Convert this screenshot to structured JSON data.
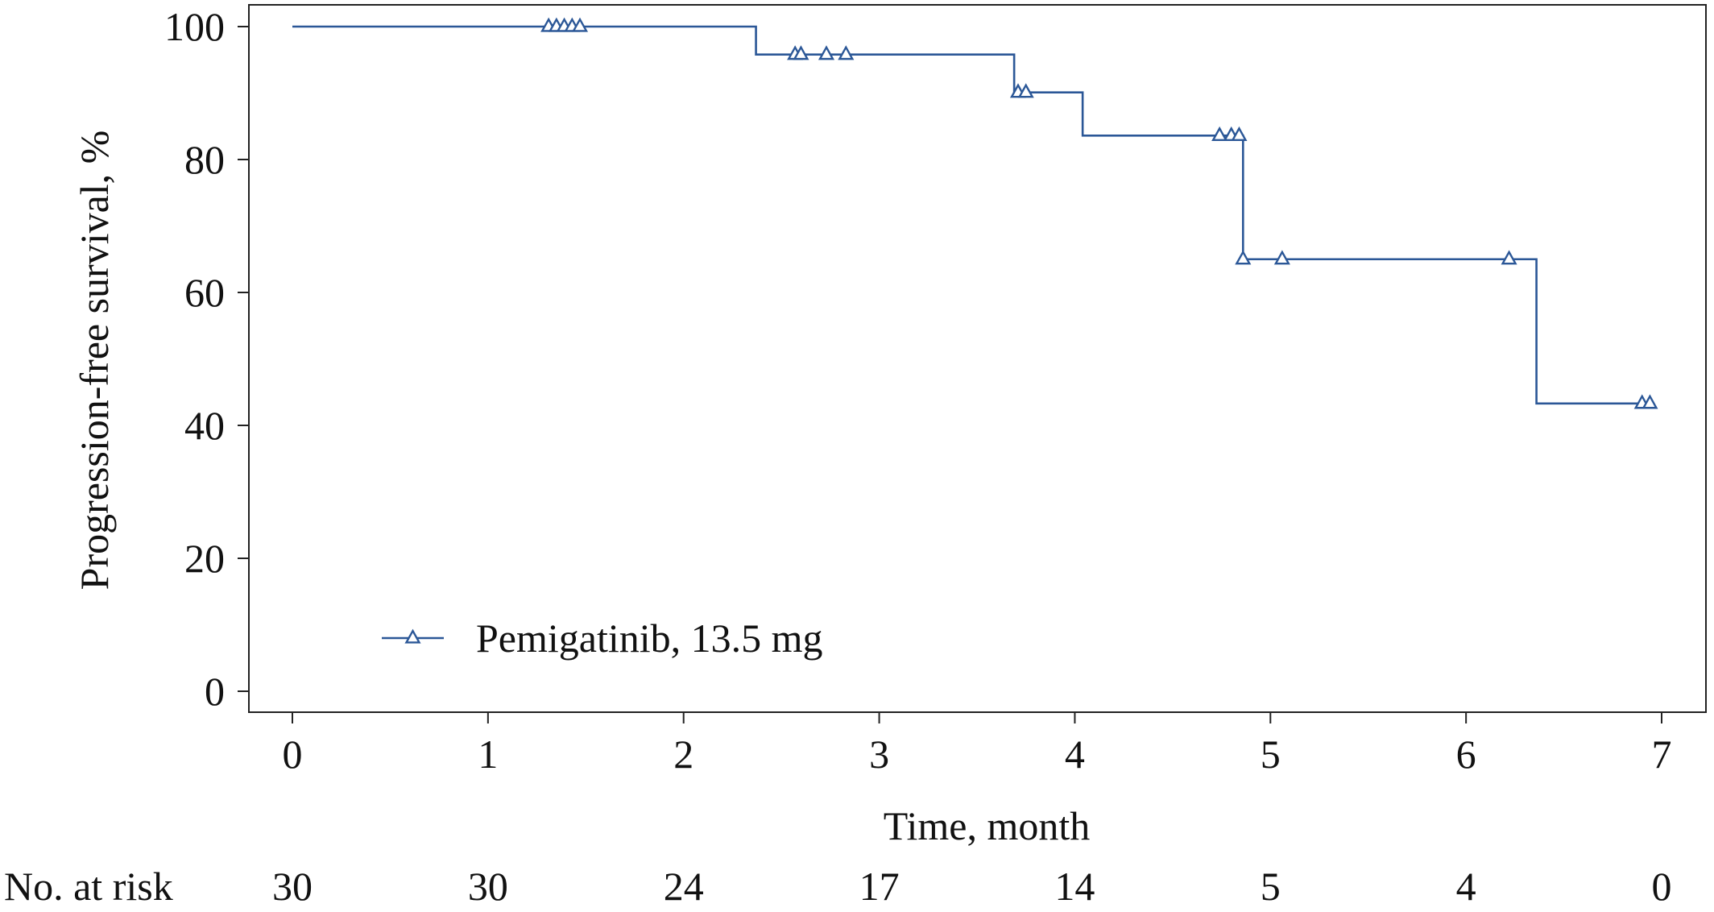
{
  "chart_data": {
    "type": "line",
    "step": true,
    "xlabel": "Time, month",
    "ylabel": "Progression-free survival, %",
    "xlim": [
      0,
      7
    ],
    "ylim": [
      0,
      100
    ],
    "x_ticks": [
      0,
      1,
      2,
      3,
      4,
      5,
      6,
      7
    ],
    "y_ticks": [
      0,
      20,
      40,
      60,
      80,
      100
    ],
    "grid": false,
    "legend": {
      "placement": "bottom-left"
    },
    "series": [
      {
        "name": "Pemigatinib, 13.5 mg",
        "color": "#2b5797",
        "marker": "triangle-open",
        "steps": [
          {
            "x": 0.0,
            "y": 100.0
          },
          {
            "x": 2.37,
            "y": 95.8
          },
          {
            "x": 3.69,
            "y": 90.1
          },
          {
            "x": 4.04,
            "y": 83.6
          },
          {
            "x": 4.86,
            "y": 65.0
          },
          {
            "x": 6.36,
            "y": 43.3
          }
        ],
        "end_x": 6.93,
        "censored": [
          {
            "x": 1.31,
            "y": 100.0
          },
          {
            "x": 1.35,
            "y": 100.0
          },
          {
            "x": 1.39,
            "y": 100.0
          },
          {
            "x": 1.43,
            "y": 100.0
          },
          {
            "x": 1.47,
            "y": 100.0
          },
          {
            "x": 2.57,
            "y": 95.8
          },
          {
            "x": 2.6,
            "y": 95.8
          },
          {
            "x": 2.73,
            "y": 95.8
          },
          {
            "x": 2.83,
            "y": 95.8
          },
          {
            "x": 3.71,
            "y": 90.1
          },
          {
            "x": 3.75,
            "y": 90.1
          },
          {
            "x": 4.74,
            "y": 83.6
          },
          {
            "x": 4.8,
            "y": 83.6
          },
          {
            "x": 4.84,
            "y": 83.6
          },
          {
            "x": 4.86,
            "y": 65.0
          },
          {
            "x": 5.06,
            "y": 65.0
          },
          {
            "x": 6.22,
            "y": 65.0
          },
          {
            "x": 6.9,
            "y": 43.3
          },
          {
            "x": 6.94,
            "y": 43.3
          }
        ]
      }
    ],
    "risk_table": {
      "label": "No. at risk",
      "times": [
        0,
        1,
        2,
        3,
        4,
        5,
        6,
        7
      ],
      "counts": [
        "30",
        "30",
        "24",
        "17",
        "14",
        "5",
        "4",
        "0"
      ]
    }
  }
}
